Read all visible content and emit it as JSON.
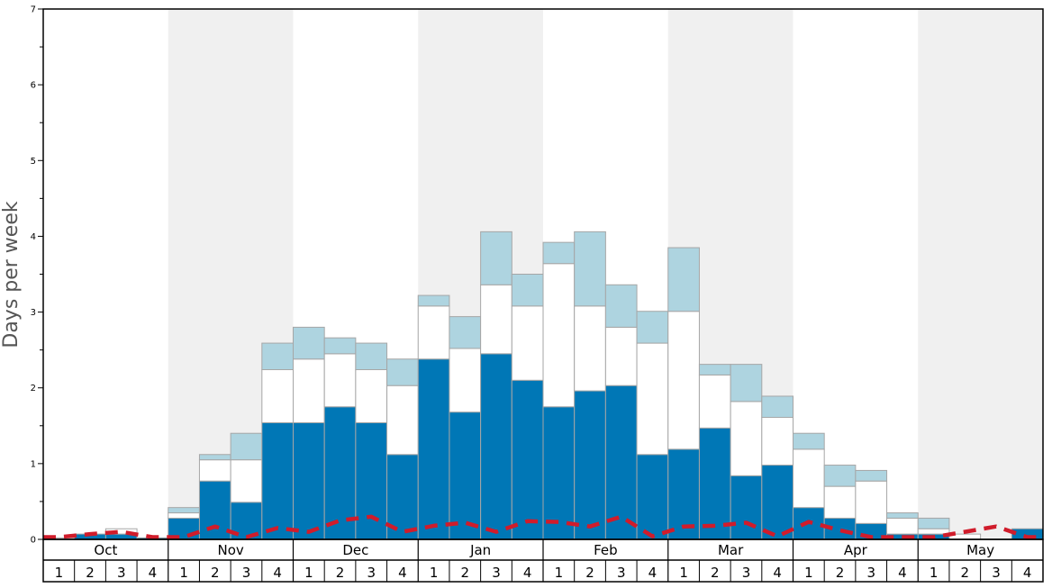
{
  "chart_data": {
    "type": "bar",
    "ylabel": "Days per week",
    "ylim": [
      0,
      7
    ],
    "y_ticks": [
      "0",
      "1",
      "2",
      "3",
      "4",
      "5",
      "6",
      "7"
    ],
    "months": [
      "Oct",
      "Nov",
      "Dec",
      "Jan",
      "Feb",
      "Mar",
      "Apr",
      "May"
    ],
    "weeks": [
      "1",
      "2",
      "3",
      "4"
    ],
    "shaded_months": [
      false,
      true,
      false,
      true,
      false,
      true,
      false,
      true
    ],
    "colors": {
      "series_a": "#0077b6",
      "series_b": "#ffffff",
      "series_c": "#aed4e0",
      "dashed_line": "#d01c2b",
      "shade": "#f0f0f0"
    },
    "series": [
      {
        "values": [
          0,
          0.07,
          0.07,
          0.02,
          0.28,
          0.77,
          0.49,
          1.54,
          1.54,
          1.75,
          1.54,
          1.12,
          2.38,
          1.68,
          2.45,
          2.1,
          1.75,
          1.96,
          2.03,
          1.12,
          1.19,
          1.47,
          0.84,
          0.98,
          0.42,
          0.28,
          0.21,
          0.07,
          0.07,
          0,
          0,
          0.14
        ]
      },
      {
        "values": [
          0.02,
          0,
          0.07,
          0,
          0.07,
          0.28,
          0.56,
          0.7,
          0.84,
          0.7,
          0.7,
          0.91,
          0.7,
          0.84,
          0.91,
          0.98,
          1.89,
          1.12,
          0.77,
          1.47,
          1.82,
          0.7,
          0.98,
          0.63,
          0.77,
          0.42,
          0.56,
          0.21,
          0.07,
          0.07,
          0,
          0
        ]
      },
      {
        "values": [
          0,
          0,
          0,
          0,
          0.07,
          0.07,
          0.35,
          0.35,
          0.42,
          0.21,
          0.35,
          0.35,
          0.14,
          0.42,
          0.7,
          0.42,
          0.28,
          0.98,
          0.56,
          0.42,
          0.84,
          0.14,
          0.49,
          0.28,
          0.21,
          0.28,
          0.14,
          0.07,
          0.14,
          0,
          0,
          0
        ]
      },
      {
        "values": [
          0.03,
          0.07,
          0.1,
          0.03,
          0.03,
          0.17,
          0.03,
          0.15,
          0.1,
          0.25,
          0.3,
          0.1,
          0.18,
          0.22,
          0.1,
          0.24,
          0.23,
          0.17,
          0.3,
          0.04,
          0.17,
          0.18,
          0.22,
          0.04,
          0.23,
          0.12,
          0.03,
          0.03,
          0.03,
          0.1,
          0.17,
          0.03
        ]
      }
    ]
  }
}
